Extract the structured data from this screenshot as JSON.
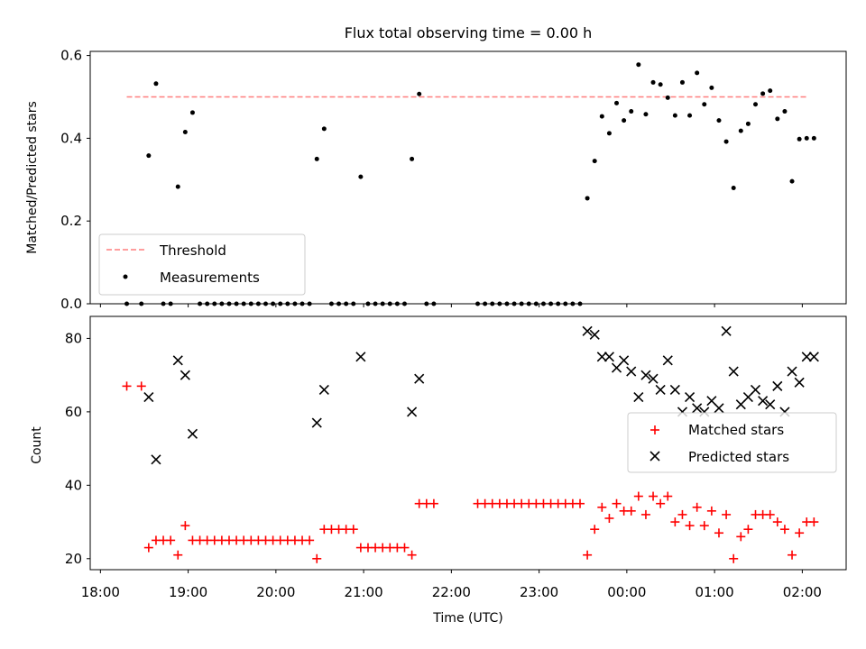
{
  "title": "Flux total observing time = 0.00 h",
  "chart_data": [
    {
      "type": "scatter",
      "title": "Flux total observing time = 0.00 h",
      "xlabel": "",
      "ylabel": "Matched/Predicted stars",
      "xlim": [
        "18:00",
        "02:30"
      ],
      "ylim": [
        0,
        0.61
      ],
      "y_ticks": [
        "0.0",
        "0.2",
        "0.4",
        "0.6"
      ],
      "threshold": {
        "name": "Threshold",
        "value": 0.5,
        "x_range": [
          "18:18",
          "02:04"
        ],
        "color": "#ff7f7f",
        "style": "dashed"
      },
      "legend": {
        "position": "lower-left",
        "entries": [
          "Threshold",
          "Measurements"
        ]
      },
      "series": [
        {
          "name": "Measurements",
          "color": "#000000",
          "marker": "dot",
          "points": [
            [
              "18:18",
              0
            ],
            [
              "18:28",
              0
            ],
            [
              "18:33",
              0.358
            ],
            [
              "18:38",
              0.532
            ],
            [
              "18:43",
              0
            ],
            [
              "18:48",
              0
            ],
            [
              "18:53",
              0.283
            ],
            [
              "18:58",
              0.415
            ],
            [
              "19:03",
              0.462
            ],
            [
              "19:08",
              0
            ],
            [
              "19:13",
              0
            ],
            [
              "19:18",
              0
            ],
            [
              "19:23",
              0
            ],
            [
              "19:28",
              0
            ],
            [
              "19:33",
              0
            ],
            [
              "19:38",
              0
            ],
            [
              "19:43",
              0
            ],
            [
              "19:48",
              0
            ],
            [
              "19:53",
              0
            ],
            [
              "19:58",
              0
            ],
            [
              "20:03",
              0
            ],
            [
              "20:08",
              0
            ],
            [
              "20:13",
              0
            ],
            [
              "20:18",
              0
            ],
            [
              "20:23",
              0
            ],
            [
              "20:28",
              0.35
            ],
            [
              "20:33",
              0.423
            ],
            [
              "20:38",
              0
            ],
            [
              "20:43",
              0
            ],
            [
              "20:48",
              0
            ],
            [
              "20:53",
              0
            ],
            [
              "20:58",
              0.307
            ],
            [
              "21:03",
              0
            ],
            [
              "21:08",
              0
            ],
            [
              "21:13",
              0
            ],
            [
              "21:18",
              0
            ],
            [
              "21:23",
              0
            ],
            [
              "21:28",
              0
            ],
            [
              "21:33",
              0.35
            ],
            [
              "21:38",
              0.507
            ],
            [
              "21:43",
              0
            ],
            [
              "21:48",
              0
            ],
            [
              "22:18",
              0
            ],
            [
              "22:23",
              0
            ],
            [
              "22:28",
              0
            ],
            [
              "22:33",
              0
            ],
            [
              "22:38",
              0
            ],
            [
              "22:43",
              0
            ],
            [
              "22:48",
              0
            ],
            [
              "22:53",
              0
            ],
            [
              "22:58",
              0
            ],
            [
              "23:03",
              0
            ],
            [
              "23:08",
              0
            ],
            [
              "23:13",
              0
            ],
            [
              "23:18",
              0
            ],
            [
              "23:23",
              0
            ],
            [
              "23:28",
              0
            ],
            [
              "23:33",
              0.255
            ],
            [
              "23:38",
              0.345
            ],
            [
              "23:43",
              0.453
            ],
            [
              "23:48",
              0.412
            ],
            [
              "23:53",
              0.485
            ],
            [
              "23:58",
              0.443
            ],
            [
              "00:03",
              0.465
            ],
            [
              "00:08",
              0.578
            ],
            [
              "00:13",
              0.458
            ],
            [
              "00:18",
              0.535
            ],
            [
              "00:23",
              0.53
            ],
            [
              "00:28",
              0.498
            ],
            [
              "00:33",
              0.455
            ],
            [
              "00:38",
              0.535
            ],
            [
              "00:43",
              0.455
            ],
            [
              "00:48",
              0.558
            ],
            [
              "00:53",
              0.482
            ],
            [
              "00:58",
              0.522
            ],
            [
              "01:03",
              0.443
            ],
            [
              "01:08",
              0.392
            ],
            [
              "01:13",
              0.28
            ],
            [
              "01:18",
              0.418
            ],
            [
              "01:23",
              0.435
            ],
            [
              "01:28",
              0.482
            ],
            [
              "01:33",
              0.508
            ],
            [
              "01:38",
              0.515
            ],
            [
              "01:43",
              0.447
            ],
            [
              "01:48",
              0.465
            ],
            [
              "01:53",
              0.296
            ],
            [
              "01:58",
              0.398
            ],
            [
              "02:03",
              0.4
            ],
            [
              "02:08",
              0.4
            ]
          ]
        }
      ]
    },
    {
      "type": "scatter",
      "title": "",
      "xlabel": "Time (UTC)",
      "ylabel": "Count",
      "xlim": [
        "18:00",
        "02:30"
      ],
      "ylim": [
        17,
        86
      ],
      "y_ticks": [
        "20",
        "40",
        "60",
        "80"
      ],
      "x_ticks": [
        "18:00",
        "19:00",
        "20:00",
        "21:00",
        "22:00",
        "23:00",
        "00:00",
        "01:00",
        "02:00"
      ],
      "legend": {
        "position": "center-right",
        "entries": [
          "Matched stars",
          "Predicted stars"
        ]
      },
      "series": [
        {
          "name": "Matched stars",
          "color": "#ff0000",
          "marker": "plus",
          "points": [
            [
              "18:18",
              67
            ],
            [
              "18:28",
              67
            ],
            [
              "18:33",
              23
            ],
            [
              "18:38",
              25
            ],
            [
              "18:43",
              25
            ],
            [
              "18:48",
              25
            ],
            [
              "18:53",
              21
            ],
            [
              "18:58",
              29
            ],
            [
              "19:03",
              25
            ],
            [
              "19:08",
              25
            ],
            [
              "19:13",
              25
            ],
            [
              "19:18",
              25
            ],
            [
              "19:23",
              25
            ],
            [
              "19:28",
              25
            ],
            [
              "19:33",
              25
            ],
            [
              "19:38",
              25
            ],
            [
              "19:43",
              25
            ],
            [
              "19:48",
              25
            ],
            [
              "19:53",
              25
            ],
            [
              "19:58",
              25
            ],
            [
              "20:03",
              25
            ],
            [
              "20:08",
              25
            ],
            [
              "20:13",
              25
            ],
            [
              "20:18",
              25
            ],
            [
              "20:23",
              25
            ],
            [
              "20:28",
              20
            ],
            [
              "20:33",
              28
            ],
            [
              "20:38",
              28
            ],
            [
              "20:43",
              28
            ],
            [
              "20:48",
              28
            ],
            [
              "20:53",
              28
            ],
            [
              "20:58",
              23
            ],
            [
              "21:03",
              23
            ],
            [
              "21:08",
              23
            ],
            [
              "21:13",
              23
            ],
            [
              "21:18",
              23
            ],
            [
              "21:23",
              23
            ],
            [
              "21:28",
              23
            ],
            [
              "21:33",
              21
            ],
            [
              "21:38",
              35
            ],
            [
              "21:43",
              35
            ],
            [
              "21:48",
              35
            ],
            [
              "22:18",
              35
            ],
            [
              "22:23",
              35
            ],
            [
              "22:28",
              35
            ],
            [
              "22:33",
              35
            ],
            [
              "22:38",
              35
            ],
            [
              "22:43",
              35
            ],
            [
              "22:48",
              35
            ],
            [
              "22:53",
              35
            ],
            [
              "22:58",
              35
            ],
            [
              "23:03",
              35
            ],
            [
              "23:08",
              35
            ],
            [
              "23:13",
              35
            ],
            [
              "23:18",
              35
            ],
            [
              "23:23",
              35
            ],
            [
              "23:28",
              35
            ],
            [
              "23:33",
              21
            ],
            [
              "23:38",
              28
            ],
            [
              "23:43",
              34
            ],
            [
              "23:48",
              31
            ],
            [
              "23:53",
              35
            ],
            [
              "23:58",
              33
            ],
            [
              "00:03",
              33
            ],
            [
              "00:08",
              37
            ],
            [
              "00:13",
              32
            ],
            [
              "00:18",
              37
            ],
            [
              "00:23",
              35
            ],
            [
              "00:28",
              37
            ],
            [
              "00:33",
              30
            ],
            [
              "00:38",
              32
            ],
            [
              "00:43",
              29
            ],
            [
              "00:48",
              34
            ],
            [
              "00:53",
              29
            ],
            [
              "00:58",
              33
            ],
            [
              "01:03",
              27
            ],
            [
              "01:08",
              32
            ],
            [
              "01:13",
              20
            ],
            [
              "01:18",
              26
            ],
            [
              "01:23",
              28
            ],
            [
              "01:28",
              32
            ],
            [
              "01:33",
              32
            ],
            [
              "01:38",
              32
            ],
            [
              "01:43",
              30
            ],
            [
              "01:48",
              28
            ],
            [
              "01:53",
              21
            ],
            [
              "01:58",
              27
            ],
            [
              "02:03",
              30
            ],
            [
              "02:08",
              30
            ]
          ]
        },
        {
          "name": "Predicted stars",
          "color": "#000000",
          "marker": "x",
          "points": [
            [
              "18:33",
              64
            ],
            [
              "18:38",
              47
            ],
            [
              "18:53",
              74
            ],
            [
              "18:58",
              70
            ],
            [
              "19:03",
              54
            ],
            [
              "20:28",
              57
            ],
            [
              "20:33",
              66
            ],
            [
              "20:58",
              75
            ],
            [
              "21:33",
              60
            ],
            [
              "21:38",
              69
            ],
            [
              "23:33",
              82
            ],
            [
              "23:38",
              81
            ],
            [
              "23:43",
              75
            ],
            [
              "23:48",
              75
            ],
            [
              "23:53",
              72
            ],
            [
              "23:58",
              74
            ],
            [
              "00:03",
              71
            ],
            [
              "00:08",
              64
            ],
            [
              "00:13",
              70
            ],
            [
              "00:18",
              69
            ],
            [
              "00:23",
              66
            ],
            [
              "00:28",
              74
            ],
            [
              "00:33",
              66
            ],
            [
              "00:38",
              60
            ],
            [
              "00:43",
              64
            ],
            [
              "00:48",
              61
            ],
            [
              "00:53",
              60
            ],
            [
              "00:58",
              63
            ],
            [
              "01:03",
              61
            ],
            [
              "01:08",
              82
            ],
            [
              "01:13",
              71
            ],
            [
              "01:18",
              62
            ],
            [
              "01:23",
              64
            ],
            [
              "01:28",
              66
            ],
            [
              "01:33",
              63
            ],
            [
              "01:38",
              62
            ],
            [
              "01:43",
              67
            ],
            [
              "01:48",
              60
            ],
            [
              "01:53",
              71
            ],
            [
              "01:58",
              68
            ],
            [
              "02:03",
              75
            ],
            [
              "02:08",
              75
            ]
          ]
        }
      ]
    }
  ]
}
